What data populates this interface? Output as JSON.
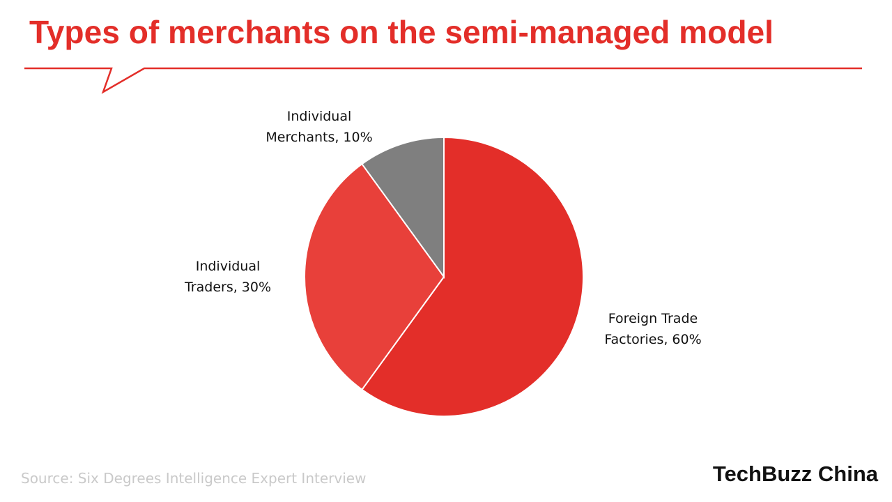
{
  "chart_data": {
    "type": "pie",
    "title": "Types of merchants on the semi-managed model",
    "categories": [
      "Foreign Trade Factories,",
      "Individual Traders,",
      "Individual Merchants,"
    ],
    "values": [
      60,
      30,
      10
    ],
    "value_labels": [
      "60%",
      "30%",
      "10%"
    ],
    "colors": [
      "#e32e29",
      "#e8403a",
      "#7f7f7f"
    ],
    "source": "Source: Six Degrees Intelligence Expert Interview",
    "logo": "TechBuzz China"
  }
}
